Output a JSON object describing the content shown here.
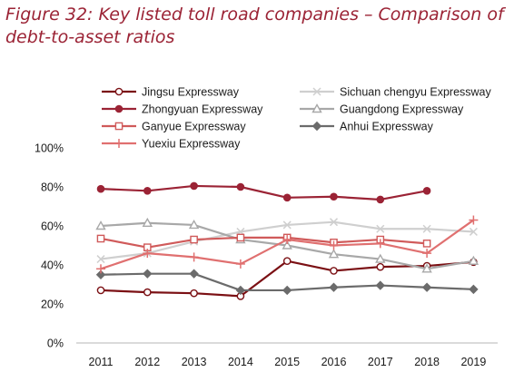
{
  "figure": {
    "title_line1": "Figure 32: Key listed toll road companies – Comparison of",
    "title_line2": "debt-to-asset ratios"
  },
  "chart_data": {
    "type": "line",
    "title": "Figure 32: Key listed toll road companies – Comparison of debt-to-asset ratios",
    "xlabel": "",
    "ylabel": "",
    "categories": [
      "2011",
      "2012",
      "2013",
      "2014",
      "2015",
      "2016",
      "2017",
      "2018",
      "2019"
    ],
    "ylim": [
      0,
      100
    ],
    "yticks": [
      "0%",
      "20%",
      "40%",
      "60%",
      "80%",
      "100%"
    ],
    "grid": false,
    "legend_position": "top",
    "series": [
      {
        "name": "Jingsu Expressway",
        "color": "#7b1014",
        "marker": "circle-open",
        "values": [
          27,
          26,
          25.5,
          24,
          42,
          37,
          39,
          39.5,
          41.5
        ]
      },
      {
        "name": "Sichuan chengyu Expressway",
        "color": "#cfcfcf",
        "marker": "x",
        "values": [
          43,
          46,
          52,
          57,
          60.5,
          62,
          58.5,
          58.5,
          57
        ]
      },
      {
        "name": "Zhongyuan Expressway",
        "color": "#9b2335",
        "marker": "circle-filled",
        "values": [
          79,
          78,
          80.5,
          80,
          74.5,
          75,
          73.5,
          78,
          null
        ]
      },
      {
        "name": "Guangdong Expressway",
        "color": "#a8a8a8",
        "marker": "triangle-open",
        "values": [
          60,
          61.5,
          60.5,
          53,
          50,
          45.5,
          43,
          38,
          42
        ]
      },
      {
        "name": "Ganyue Expressway",
        "color": "#d05a5a",
        "marker": "square-open",
        "values": [
          53.5,
          49,
          53,
          54,
          54,
          51.5,
          53,
          51,
          null
        ]
      },
      {
        "name": "Anhui Expressway",
        "color": "#6b6b6b",
        "marker": "diamond-filled",
        "values": [
          35,
          35.5,
          35.5,
          27,
          27,
          28.5,
          29.5,
          28.5,
          27.5
        ]
      },
      {
        "name": "Yuexiu Expressway",
        "color": "#e07070",
        "marker": "plus",
        "values": [
          38,
          46,
          44,
          40.5,
          53,
          50,
          51,
          46,
          63
        ]
      }
    ]
  }
}
